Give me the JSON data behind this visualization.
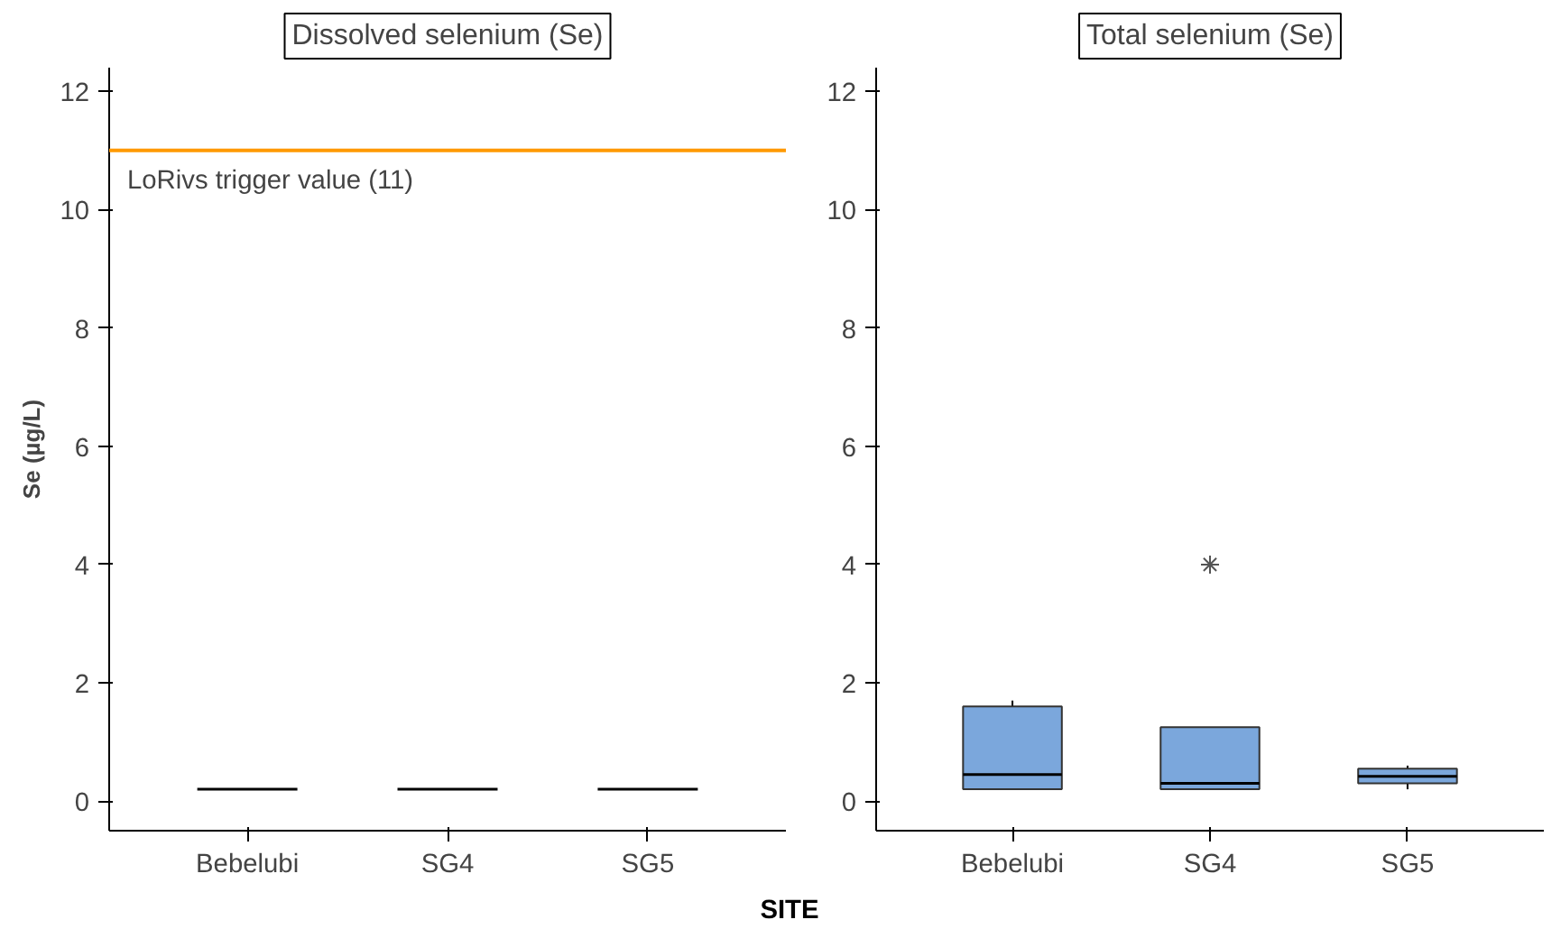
{
  "chart_data": [
    {
      "type": "box",
      "title": "Dissolved selenium (Se)",
      "ylabel": "Se (µg/L)",
      "xlabel": "SITE",
      "categories": [
        "Bebelubi",
        "SG4",
        "SG5"
      ],
      "series": [
        {
          "color": "#000000",
          "boxes": [
            {
              "low": 0.2,
              "q1": 0.2,
              "median": 0.2,
              "q3": 0.2,
              "high": 0.2
            },
            {
              "low": 0.2,
              "q1": 0.2,
              "median": 0.2,
              "q3": 0.2,
              "high": 0.2
            },
            {
              "low": 0.2,
              "q1": 0.2,
              "median": 0.2,
              "q3": 0.2,
              "high": 0.2
            }
          ]
        }
      ],
      "ylim": [
        -0.5,
        12.4
      ],
      "yticks": [
        0,
        2,
        4,
        6,
        8,
        10,
        12
      ],
      "grid": false,
      "ref_lines": [
        {
          "axis": "y",
          "value": 11,
          "label": "LoRivs trigger value (11)",
          "color": "#ff9900"
        }
      ]
    },
    {
      "type": "box",
      "title": "Total selenium (Se)",
      "categories": [
        "Bebelubi",
        "SG4",
        "SG5"
      ],
      "series": [
        {
          "color": "#7ba7dc",
          "boxes": [
            {
              "low": 0.2,
              "q1": 0.2,
              "median": 0.45,
              "q3": 1.6,
              "high": 1.7
            },
            {
              "low": 0.2,
              "q1": 0.2,
              "median": 0.3,
              "q3": 1.25,
              "high": 1.25,
              "outliers": [
                4
              ]
            },
            {
              "low": 0.2,
              "q1": 0.3,
              "median": 0.42,
              "q3": 0.55,
              "high": 0.6
            }
          ]
        }
      ],
      "ylim": [
        -0.5,
        12.4
      ],
      "yticks": [
        0,
        2,
        4,
        6,
        8,
        10,
        12
      ],
      "grid": false,
      "marker": "star"
    }
  ]
}
